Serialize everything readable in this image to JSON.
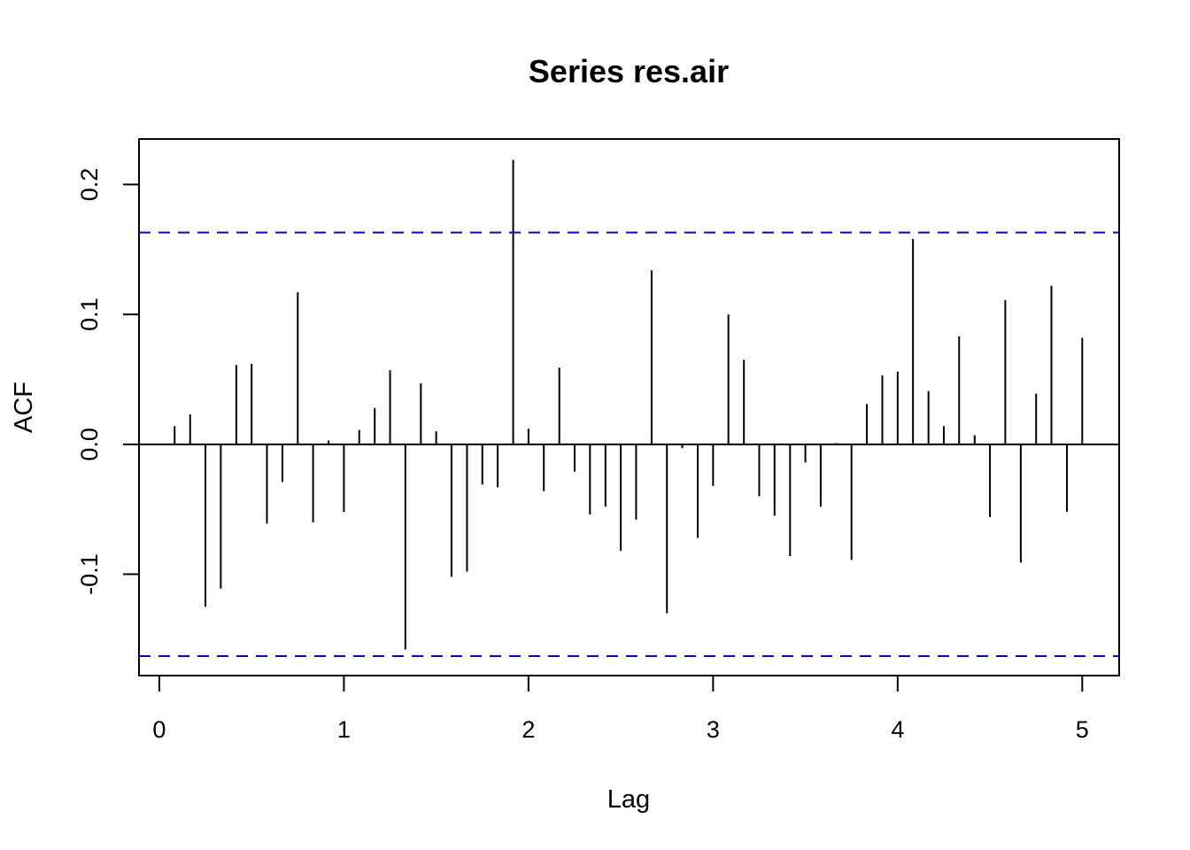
{
  "chart_data": {
    "type": "bar",
    "title": "Series res.air",
    "xlabel": "Lag",
    "ylabel": "ACF",
    "xlim": [
      -0.11,
      5.2
    ],
    "ylim": [
      -0.178,
      0.235
    ],
    "x_ticks": [
      0,
      1,
      2,
      3,
      4,
      5
    ],
    "x_tick_labels": [
      "0",
      "1",
      "2",
      "3",
      "4",
      "5"
    ],
    "y_ticks": [
      -0.1,
      0.0,
      0.1,
      0.2
    ],
    "y_tick_labels": [
      "-0.1",
      "0.0",
      "0.1",
      "0.2"
    ],
    "confidence_bound": 0.163,
    "grid": false,
    "legend": "none",
    "colors": {
      "bars": "#000000",
      "confidence": "#0000ff",
      "axes": "#000000"
    },
    "x": [
      0.083,
      0.167,
      0.25,
      0.333,
      0.417,
      0.5,
      0.583,
      0.667,
      0.75,
      0.833,
      0.917,
      1.0,
      1.083,
      1.167,
      1.25,
      1.333,
      1.417,
      1.5,
      1.583,
      1.667,
      1.75,
      1.833,
      1.917,
      2.0,
      2.083,
      2.167,
      2.25,
      2.333,
      2.417,
      2.5,
      2.583,
      2.667,
      2.75,
      2.833,
      2.917,
      3.0,
      3.083,
      3.167,
      3.25,
      3.333,
      3.417,
      3.5,
      3.583,
      3.667,
      3.75,
      3.833,
      3.917,
      4.0,
      4.083,
      4.167,
      4.25,
      4.333,
      4.417,
      4.5,
      4.583,
      4.667,
      4.75,
      4.833,
      4.917,
      5.0
    ],
    "values": [
      0.014,
      0.023,
      -0.125,
      -0.111,
      0.061,
      0.062,
      -0.061,
      -0.029,
      0.117,
      -0.06,
      0.003,
      -0.052,
      0.011,
      0.028,
      0.057,
      -0.158,
      0.047,
      0.01,
      -0.102,
      -0.098,
      -0.031,
      -0.033,
      0.219,
      0.012,
      -0.036,
      0.059,
      -0.021,
      -0.054,
      -0.048,
      -0.082,
      -0.058,
      0.134,
      -0.13,
      -0.003,
      -0.072,
      -0.032,
      0.1,
      0.065,
      -0.04,
      -0.055,
      -0.086,
      -0.014,
      -0.048,
      0.001,
      -0.089,
      0.031,
      0.053,
      0.056,
      0.158,
      0.041,
      0.014,
      0.083,
      0.007,
      -0.056,
      0.111,
      -0.091,
      0.039,
      0.122,
      -0.052,
      0.082
    ]
  }
}
